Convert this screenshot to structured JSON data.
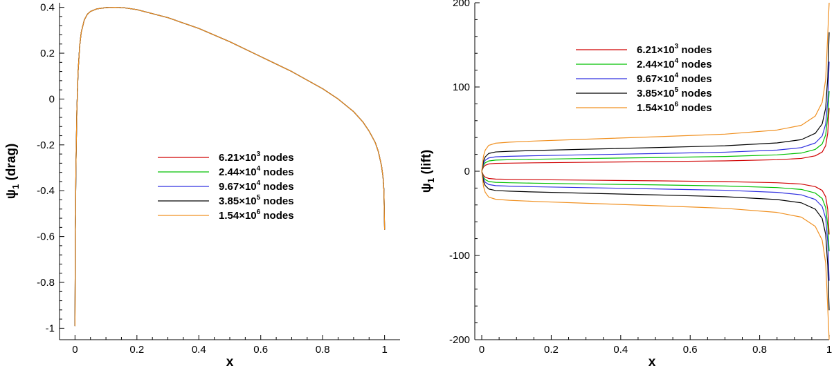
{
  "chart_data": [
    {
      "type": "line",
      "title": "",
      "xlabel": "x",
      "ylabel": "ψ1 (drag)",
      "ylabel_parts": {
        "symbol": "ψ",
        "subscript": "1",
        "rest": " (drag)"
      },
      "xlim": [
        -0.05,
        1.05
      ],
      "ylim": [
        -1.05,
        0.42
      ],
      "xticks": [
        0,
        0.2,
        0.4,
        0.6,
        0.8,
        1
      ],
      "xtick_labels": [
        "0",
        "0.2",
        "0.4",
        "0.6",
        "0.8",
        "1"
      ],
      "yticks": [
        -1,
        -0.8,
        -0.6,
        -0.4,
        -0.2,
        0,
        0.2,
        0.4
      ],
      "ytick_labels": [
        "-1",
        "-0.8",
        "-0.6",
        "-0.4",
        "-0.2",
        "0",
        "0.2",
        "0.4"
      ],
      "grid": false,
      "legend_position": "center",
      "series": [
        {
          "name": "6.21×10³ nodes",
          "legend": {
            "mantissa": "6.21×10",
            "exp": "3",
            "suffix": " nodes"
          },
          "color": "#d00000",
          "x": [
            0,
            0.001,
            0.003,
            0.006,
            0.01,
            0.015,
            0.02,
            0.03,
            0.04,
            0.05,
            0.07,
            0.1,
            0.13,
            0.16,
            0.2,
            0.3,
            0.4,
            0.5,
            0.6,
            0.7,
            0.8,
            0.85,
            0.9,
            0.93,
            0.95,
            0.97,
            0.98,
            0.99,
            0.995,
            0.998,
            1.0
          ],
          "y": [
            -0.99,
            -0.6,
            -0.3,
            -0.05,
            0.12,
            0.23,
            0.29,
            0.345,
            0.37,
            0.382,
            0.393,
            0.399,
            0.4,
            0.398,
            0.39,
            0.355,
            0.308,
            0.25,
            0.185,
            0.12,
            0.045,
            0.0,
            -0.055,
            -0.1,
            -0.14,
            -0.19,
            -0.23,
            -0.29,
            -0.34,
            -0.4,
            -0.57
          ]
        },
        {
          "name": "2.44×10⁴ nodes",
          "legend": {
            "mantissa": "2.44×10",
            "exp": "4",
            "suffix": " nodes"
          },
          "color": "#00c000",
          "x": [
            0,
            0.001,
            0.003,
            0.006,
            0.01,
            0.015,
            0.02,
            0.03,
            0.04,
            0.05,
            0.07,
            0.1,
            0.13,
            0.16,
            0.2,
            0.3,
            0.4,
            0.5,
            0.6,
            0.7,
            0.8,
            0.85,
            0.9,
            0.93,
            0.95,
            0.97,
            0.98,
            0.99,
            0.995,
            0.998,
            1.0
          ],
          "y": [
            -0.99,
            -0.6,
            -0.3,
            -0.05,
            0.12,
            0.23,
            0.29,
            0.345,
            0.37,
            0.382,
            0.393,
            0.399,
            0.4,
            0.398,
            0.39,
            0.355,
            0.308,
            0.25,
            0.185,
            0.12,
            0.045,
            0.0,
            -0.055,
            -0.1,
            -0.14,
            -0.19,
            -0.23,
            -0.29,
            -0.34,
            -0.4,
            -0.57
          ]
        },
        {
          "name": "9.67×10⁴ nodes",
          "legend": {
            "mantissa": "9.67×10",
            "exp": "4",
            "suffix": " nodes"
          },
          "color": "#3030e0",
          "x": [
            0,
            0.001,
            0.003,
            0.006,
            0.01,
            0.015,
            0.02,
            0.03,
            0.04,
            0.05,
            0.07,
            0.1,
            0.13,
            0.16,
            0.2,
            0.3,
            0.4,
            0.5,
            0.6,
            0.7,
            0.8,
            0.85,
            0.9,
            0.93,
            0.95,
            0.97,
            0.98,
            0.99,
            0.995,
            0.998,
            1.0
          ],
          "y": [
            -0.99,
            -0.6,
            -0.3,
            -0.05,
            0.12,
            0.23,
            0.29,
            0.345,
            0.37,
            0.382,
            0.393,
            0.399,
            0.4,
            0.398,
            0.39,
            0.355,
            0.308,
            0.25,
            0.185,
            0.12,
            0.045,
            0.0,
            -0.055,
            -0.1,
            -0.14,
            -0.19,
            -0.23,
            -0.29,
            -0.34,
            -0.4,
            -0.57
          ]
        },
        {
          "name": "3.85×10⁵ nodes",
          "legend": {
            "mantissa": "3.85×10",
            "exp": "5",
            "suffix": " nodes"
          },
          "color": "#000000",
          "x": [
            0,
            0.001,
            0.003,
            0.006,
            0.01,
            0.015,
            0.02,
            0.03,
            0.04,
            0.05,
            0.07,
            0.1,
            0.13,
            0.16,
            0.2,
            0.3,
            0.4,
            0.5,
            0.6,
            0.7,
            0.8,
            0.85,
            0.9,
            0.93,
            0.95,
            0.97,
            0.98,
            0.99,
            0.995,
            0.998,
            1.0
          ],
          "y": [
            -0.99,
            -0.6,
            -0.3,
            -0.05,
            0.12,
            0.23,
            0.29,
            0.345,
            0.37,
            0.382,
            0.393,
            0.399,
            0.4,
            0.398,
            0.39,
            0.355,
            0.308,
            0.25,
            0.185,
            0.12,
            0.045,
            0.0,
            -0.055,
            -0.1,
            -0.14,
            -0.19,
            -0.23,
            -0.29,
            -0.34,
            -0.4,
            -0.57
          ]
        },
        {
          "name": "1.54×10⁶ nodes",
          "legend": {
            "mantissa": "1.54×10",
            "exp": "6",
            "suffix": " nodes"
          },
          "color": "#f09020",
          "x": [
            0,
            0.001,
            0.003,
            0.006,
            0.01,
            0.015,
            0.02,
            0.03,
            0.04,
            0.05,
            0.07,
            0.1,
            0.13,
            0.16,
            0.2,
            0.3,
            0.4,
            0.5,
            0.6,
            0.7,
            0.8,
            0.85,
            0.9,
            0.93,
            0.95,
            0.97,
            0.98,
            0.99,
            0.995,
            0.998,
            1.0
          ],
          "y": [
            -0.99,
            -0.6,
            -0.3,
            -0.05,
            0.12,
            0.23,
            0.29,
            0.345,
            0.37,
            0.382,
            0.393,
            0.399,
            0.4,
            0.398,
            0.39,
            0.355,
            0.308,
            0.25,
            0.185,
            0.12,
            0.045,
            0.0,
            -0.055,
            -0.1,
            -0.14,
            -0.19,
            -0.23,
            -0.29,
            -0.34,
            -0.4,
            -0.57
          ]
        }
      ]
    },
    {
      "type": "line",
      "title": "",
      "xlabel": "x",
      "ylabel": "ψ1 (lift)",
      "ylabel_parts": {
        "symbol": "ψ",
        "subscript": "1",
        "rest": " (lift)"
      },
      "xlim": [
        -0.02,
        1.0
      ],
      "ylim": [
        -200,
        200
      ],
      "xticks": [
        0,
        0.2,
        0.4,
        0.6,
        0.8,
        1
      ],
      "xtick_labels": [
        "0",
        "0.2",
        "0.4",
        "0.6",
        "0.8",
        "1"
      ],
      "yticks": [
        -200,
        -100,
        0,
        100,
        200
      ],
      "ytick_labels": [
        "-200",
        "-100",
        "0",
        "100",
        "200"
      ],
      "grid": false,
      "legend_position": "top-right",
      "series": [
        {
          "name": "6.21×10³ nodes",
          "legend": {
            "mantissa": "6.21×10",
            "exp": "3",
            "suffix": " nodes"
          },
          "color": "#d00000",
          "x": [
            0,
            0.005,
            0.01,
            0.02,
            0.04,
            0.08,
            0.15,
            0.3,
            0.5,
            0.7,
            0.85,
            0.92,
            0.96,
            0.98,
            0.99,
            0.996,
            1.0
          ],
          "y": [
            0,
            5,
            7,
            8.6,
            9.3,
            9.6,
            10,
            10.6,
            11.4,
            12.3,
            13.7,
            15.2,
            18.3,
            22.8,
            30.4,
            45.6,
            75
          ],
          "y_lower": [
            0,
            -5,
            -7,
            -8.6,
            -9.3,
            -9.6,
            -10,
            -10.6,
            -11.4,
            -12.3,
            -13.7,
            -15.2,
            -18.3,
            -22.8,
            -30.4,
            -45.6,
            -75
          ]
        },
        {
          "name": "2.44×10⁴ nodes",
          "legend": {
            "mantissa": "2.44×10",
            "exp": "4",
            "suffix": " nodes"
          },
          "color": "#00c000",
          "x": [
            0,
            0.005,
            0.01,
            0.02,
            0.04,
            0.08,
            0.15,
            0.3,
            0.5,
            0.7,
            0.85,
            0.92,
            0.96,
            0.98,
            0.99,
            0.996,
            1.0
          ],
          "y": [
            0,
            7,
            10,
            12.2,
            13.2,
            13.7,
            14.2,
            15.1,
            16.2,
            17.5,
            19.4,
            21.6,
            25.9,
            32.4,
            43.2,
            64.8,
            95
          ],
          "y_lower": [
            0,
            -7,
            -10,
            -12.2,
            -13.2,
            -13.7,
            -14.2,
            -15.1,
            -16.2,
            -17.5,
            -19.4,
            -21.6,
            -25.9,
            -32.4,
            -43.2,
            -64.8,
            -95
          ]
        },
        {
          "name": "9.67×10⁴ nodes",
          "legend": {
            "mantissa": "9.67×10",
            "exp": "4",
            "suffix": " nodes"
          },
          "color": "#3030e0",
          "x": [
            0,
            0.005,
            0.01,
            0.02,
            0.04,
            0.08,
            0.15,
            0.3,
            0.5,
            0.7,
            0.85,
            0.92,
            0.96,
            0.98,
            0.99,
            0.996,
            1.0
          ],
          "y": [
            0,
            9,
            13,
            15.8,
            17.1,
            17.7,
            18.4,
            19.5,
            21,
            22.6,
            25.1,
            28,
            33.5,
            41.9,
            55.9,
            83.8,
            130
          ],
          "y_lower": [
            0,
            -9,
            -13,
            -15.8,
            -17.1,
            -17.7,
            -18.4,
            -19.5,
            -21,
            -22.6,
            -25.1,
            -28,
            -33.5,
            -41.9,
            -55.9,
            -83.8,
            -130
          ]
        },
        {
          "name": "3.85×10⁵ nodes",
          "legend": {
            "mantissa": "3.85×10",
            "exp": "5",
            "suffix": " nodes"
          },
          "color": "#000000",
          "x": [
            0,
            0.005,
            0.01,
            0.02,
            0.04,
            0.08,
            0.15,
            0.3,
            0.5,
            0.7,
            0.85,
            0.92,
            0.96,
            0.98,
            0.99,
            0.996,
            1.0
          ],
          "y": [
            0,
            12,
            17,
            21.1,
            22.9,
            23.7,
            24.6,
            26.1,
            28.1,
            30.2,
            33.6,
            37.5,
            45,
            56.2,
            75,
            112,
            165
          ],
          "y_lower": [
            0,
            -12,
            -17,
            -21.1,
            -22.9,
            -23.7,
            -24.6,
            -26.1,
            -28.1,
            -30.2,
            -33.6,
            -37.5,
            -45,
            -56.2,
            -75,
            -112,
            -165
          ]
        },
        {
          "name": "1.54×10⁶ nodes",
          "legend": {
            "mantissa": "1.54×10",
            "exp": "6",
            "suffix": " nodes"
          },
          "color": "#f09020",
          "x": [
            0,
            0.005,
            0.01,
            0.02,
            0.04,
            0.08,
            0.15,
            0.3,
            0.5,
            0.7,
            0.85,
            0.92,
            0.96,
            0.98,
            0.99,
            0.996,
            1.0
          ],
          "y": [
            0,
            18,
            25,
            30.7,
            33.3,
            34.5,
            35.8,
            38,
            40.9,
            44,
            48.9,
            54.5,
            65.5,
            81.8,
            109,
            163,
            200
          ],
          "y_lower": [
            0,
            -18,
            -25,
            -30.7,
            -33.3,
            -34.5,
            -35.8,
            -38,
            -40.9,
            -44,
            -48.9,
            -54.5,
            -65.5,
            -81.8,
            -109,
            -163,
            -200
          ]
        }
      ]
    }
  ]
}
